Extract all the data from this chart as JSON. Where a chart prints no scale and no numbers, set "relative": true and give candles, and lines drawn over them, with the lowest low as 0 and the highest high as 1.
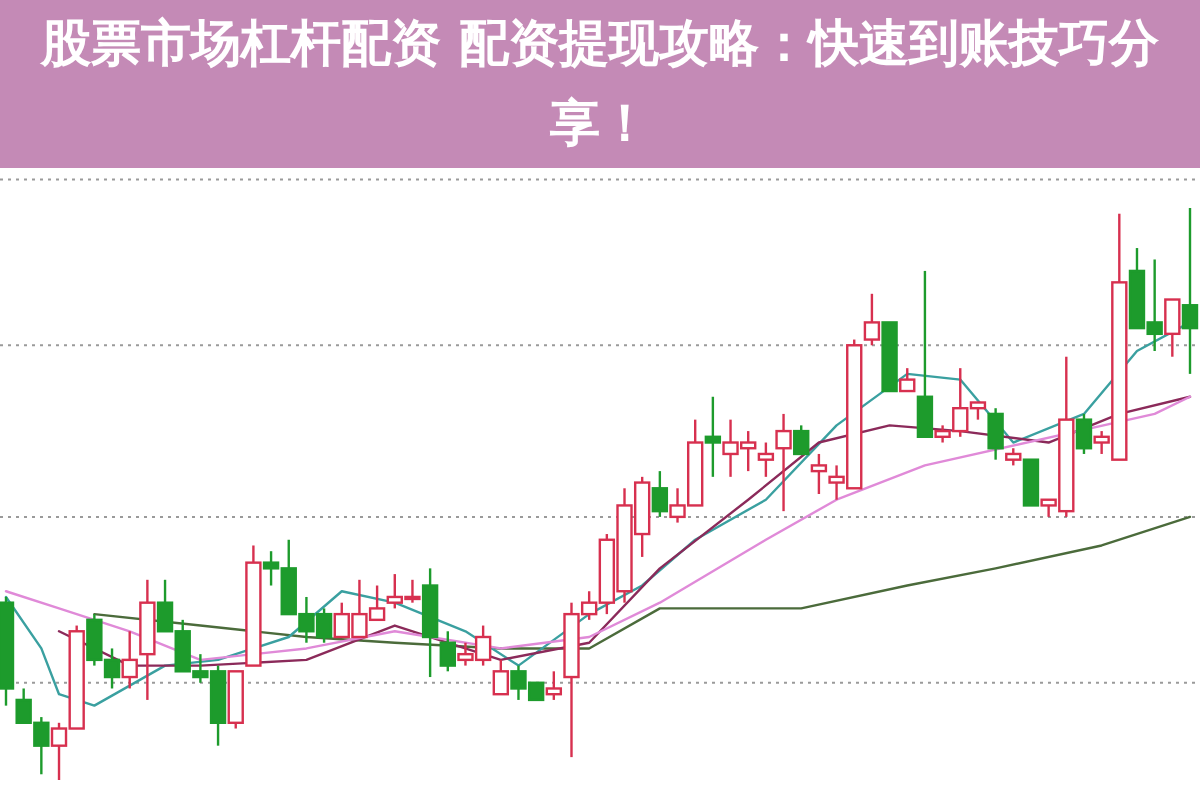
{
  "chart_data": {
    "type": "candlestick",
    "title": "股票市场杠杆配资 配资提现攻略：快速到账技巧分享！",
    "relative": true,
    "grid": true,
    "categories": [
      null,
      null,
      null,
      null,
      null,
      null,
      null,
      null,
      null,
      null,
      null,
      null,
      null,
      null,
      null,
      null,
      null,
      null,
      null,
      null,
      null,
      null,
      null,
      null,
      null,
      null,
      null,
      null,
      null,
      null,
      null,
      null,
      null,
      null,
      null,
      null,
      null,
      null,
      null,
      null,
      null,
      null,
      null,
      null,
      null,
      null,
      null,
      null,
      null,
      null,
      null,
      null,
      null,
      null,
      null,
      null,
      null,
      null,
      null,
      null,
      null,
      null,
      null,
      null,
      null,
      null,
      null,
      null
    ],
    "ohlc": [
      [
        0.31,
        0.32,
        0.13,
        0.16
      ],
      [
        0.14,
        0.16,
        0.1,
        0.1
      ],
      [
        0.1,
        0.11,
        0.01,
        0.06
      ],
      [
        0.06,
        0.1,
        0,
        0.09
      ],
      [
        0.09,
        0.27,
        0.09,
        0.26
      ],
      [
        0.28,
        0.29,
        0.2,
        0.21
      ],
      [
        0.21,
        0.23,
        0.16,
        0.18
      ],
      [
        0.18,
        0.26,
        0.16,
        0.21
      ],
      [
        0.22,
        0.35,
        0.14,
        0.31
      ],
      [
        0.31,
        0.35,
        0.26,
        0.26
      ],
      [
        0.26,
        0.28,
        0.19,
        0.19
      ],
      [
        0.19,
        0.22,
        0.17,
        0.18
      ],
      [
        0.19,
        0.2,
        0.06,
        0.1
      ],
      [
        0.1,
        0.19,
        0.09,
        0.19
      ],
      [
        0.2,
        0.41,
        0.2,
        0.38
      ],
      [
        0.38,
        0.4,
        0.34,
        0.37
      ],
      [
        0.37,
        0.42,
        0.29,
        0.29
      ],
      [
        0.29,
        0.32,
        0.24,
        0.26
      ],
      [
        0.29,
        0.3,
        0.24,
        0.25
      ],
      [
        0.25,
        0.31,
        0.25,
        0.29
      ],
      [
        0.25,
        0.35,
        0.25,
        0.29
      ],
      [
        0.28,
        0.34,
        0.28,
        0.3
      ],
      [
        0.31,
        0.36,
        0.3,
        0.32
      ],
      [
        0.32,
        0.35,
        0.31,
        0.32
      ],
      [
        0.34,
        0.37,
        0.18,
        0.25
      ],
      [
        0.24,
        0.26,
        0.19,
        0.2
      ],
      [
        0.21,
        0.24,
        0.2,
        0.22
      ],
      [
        0.21,
        0.27,
        0.2,
        0.25
      ],
      [
        0.15,
        0.21,
        0.15,
        0.19
      ],
      [
        0.19,
        0.2,
        0.14,
        0.16
      ],
      [
        0.17,
        0.17,
        0.14,
        0.14
      ],
      [
        0.15,
        0.19,
        0.14,
        0.16
      ],
      [
        0.18,
        0.31,
        0.04,
        0.29
      ],
      [
        0.29,
        0.33,
        0.28,
        0.31
      ],
      [
        0.31,
        0.43,
        0.29,
        0.42
      ],
      [
        0.33,
        0.51,
        0.31,
        0.48
      ],
      [
        0.43,
        0.53,
        0.39,
        0.52
      ],
      [
        0.51,
        0.54,
        0.46,
        0.47
      ],
      [
        0.46,
        0.51,
        0.45,
        0.48
      ],
      [
        0.48,
        0.63,
        0.48,
        0.59
      ],
      [
        0.6,
        0.67,
        0.53,
        0.59
      ],
      [
        0.57,
        0.63,
        0.53,
        0.59
      ],
      [
        0.58,
        0.61,
        0.54,
        0.59
      ],
      [
        0.56,
        0.59,
        0.53,
        0.57
      ],
      [
        0.58,
        0.64,
        0.47,
        0.61
      ],
      [
        0.61,
        0.62,
        0.57,
        0.57
      ],
      [
        0.54,
        0.57,
        0.5,
        0.55
      ],
      [
        0.52,
        0.55,
        0.49,
        0.53
      ],
      [
        0.51,
        0.77,
        0.51,
        0.76
      ],
      [
        0.77,
        0.85,
        0.76,
        0.8
      ],
      [
        0.8,
        0.8,
        0.68,
        0.68
      ],
      [
        0.68,
        0.72,
        0.68,
        0.7
      ],
      [
        0.67,
        0.89,
        0.6,
        0.6
      ],
      [
        0.6,
        0.62,
        0.59,
        0.61
      ],
      [
        0.61,
        0.72,
        0.6,
        0.65
      ],
      [
        0.65,
        0.66,
        0.63,
        0.66
      ],
      [
        0.64,
        0.65,
        0.56,
        0.58
      ],
      [
        0.56,
        0.58,
        0.55,
        0.57
      ],
      [
        0.56,
        0.56,
        0.48,
        0.48
      ],
      [
        0.48,
        0.49,
        0.46,
        0.49
      ],
      [
        0.47,
        0.74,
        0.46,
        0.63
      ],
      [
        0.63,
        0.64,
        0.57,
        0.58
      ],
      [
        0.59,
        0.61,
        0.57,
        0.6
      ],
      [
        0.56,
        0.99,
        0.56,
        0.87
      ],
      [
        0.89,
        0.93,
        0.79,
        0.79
      ],
      [
        0.8,
        0.91,
        0.75,
        0.78
      ],
      [
        0.78,
        0.84,
        0.74,
        0.84
      ],
      [
        0.83,
        1,
        0.71,
        0.79
      ]
    ],
    "colors": [
      "#1d9b2c",
      "#1d9b2c",
      "#1d9b2c",
      "#d7304f",
      "#d7304f",
      "#1d9b2c",
      "#1d9b2c",
      "#d7304f",
      "#d7304f",
      "#1d9b2c",
      "#1d9b2c",
      "#1d9b2c",
      "#1d9b2c",
      "#d7304f",
      "#d7304f",
      "#1d9b2c",
      "#1d9b2c",
      "#1d9b2c",
      "#1d9b2c",
      "#d7304f",
      "#d7304f",
      "#d7304f",
      "#d7304f",
      "#d7304f",
      "#1d9b2c",
      "#1d9b2c",
      "#d7304f",
      "#d7304f",
      "#d7304f",
      "#1d9b2c",
      "#1d9b2c",
      "#d7304f",
      "#d7304f",
      "#d7304f",
      "#d7304f",
      "#d7304f",
      "#d7304f",
      "#1d9b2c",
      "#d7304f",
      "#d7304f",
      "#1d9b2c",
      "#d7304f",
      "#d7304f",
      "#d7304f",
      "#d7304f",
      "#1d9b2c",
      "#d7304f",
      "#d7304f",
      "#d7304f",
      "#d7304f",
      "#1d9b2c",
      "#d7304f",
      "#1d9b2c",
      "#d7304f",
      "#d7304f",
      "#d7304f",
      "#1d9b2c",
      "#d7304f",
      "#1d9b2c",
      "#d7304f",
      "#d7304f",
      "#1d9b2c",
      "#d7304f",
      "#d7304f",
      "#1d9b2c",
      "#1d9b2c",
      "#d7304f",
      "#1d9b2c"
    ],
    "series": [
      {
        "type": "line",
        "color": "#4b6b3b",
        "values": [
          null,
          null,
          null,
          null,
          null,
          0.29,
          null,
          null,
          null,
          null,
          null,
          0.27,
          null,
          null,
          null,
          null,
          null,
          0.25,
          null,
          null,
          null,
          null,
          0.24,
          null,
          null,
          null,
          null,
          null,
          0.23,
          null,
          null,
          null,
          null,
          0.23,
          null,
          null,
          null,
          0.3,
          null,
          null,
          null,
          null,
          null,
          null,
          null,
          0.3,
          null,
          null,
          null,
          null,
          null,
          0.34,
          null,
          null,
          null,
          null,
          0.37,
          null,
          null,
          null,
          null,
          null,
          0.41,
          null,
          null,
          null,
          null,
          0.46
        ]
      },
      {
        "type": "line",
        "color": "#3aa0a0",
        "values": [
          0.32,
          null,
          0.23,
          0.15,
          null,
          0.13,
          null,
          null,
          null,
          0.2,
          null,
          null,
          0.21,
          null,
          null,
          null,
          0.25,
          null,
          null,
          0.33,
          null,
          null,
          0.31,
          null,
          null,
          null,
          0.26,
          null,
          null,
          0.2,
          null,
          null,
          null,
          0.29,
          null,
          null,
          0.34,
          null,
          null,
          0.42,
          null,
          null,
          null,
          0.49,
          null,
          null,
          null,
          0.62,
          null,
          null,
          null,
          0.71,
          null,
          null,
          0.7,
          null,
          null,
          0.59,
          null,
          null,
          null,
          0.64,
          null,
          null,
          0.75,
          null,
          null,
          0.8
        ]
      },
      {
        "type": "line",
        "color": "#8b2a5a",
        "values": [
          null,
          null,
          null,
          0.26,
          null,
          null,
          null,
          0.2,
          null,
          null,
          null,
          0.2,
          null,
          null,
          null,
          null,
          null,
          0.21,
          null,
          null,
          null,
          null,
          0.27,
          null,
          null,
          null,
          null,
          null,
          0.21,
          null,
          null,
          null,
          null,
          0.24,
          null,
          null,
          null,
          0.37,
          null,
          null,
          null,
          null,
          0.49,
          null,
          null,
          null,
          0.59,
          null,
          null,
          null,
          0.62,
          null,
          null,
          null,
          0.61,
          null,
          null,
          null,
          null,
          0.59,
          null,
          null,
          null,
          0.64,
          null,
          null,
          null,
          0.67
        ]
      },
      {
        "type": "line",
        "color": "#e08ad8",
        "values": [
          0.33,
          null,
          null,
          0.3,
          null,
          null,
          null,
          0.26,
          null,
          null,
          null,
          0.21,
          null,
          null,
          null,
          null,
          null,
          0.23,
          null,
          null,
          null,
          null,
          0.26,
          null,
          null,
          null,
          null,
          null,
          0.23,
          null,
          null,
          null,
          null,
          0.25,
          null,
          null,
          null,
          0.31,
          null,
          null,
          null,
          null,
          null,
          0.42,
          null,
          null,
          null,
          0.49,
          null,
          null,
          null,
          null,
          0.55,
          null,
          null,
          null,
          null,
          null,
          null,
          null,
          null,
          null,
          null,
          null,
          null,
          0.64,
          null,
          0.67
        ]
      }
    ]
  }
}
